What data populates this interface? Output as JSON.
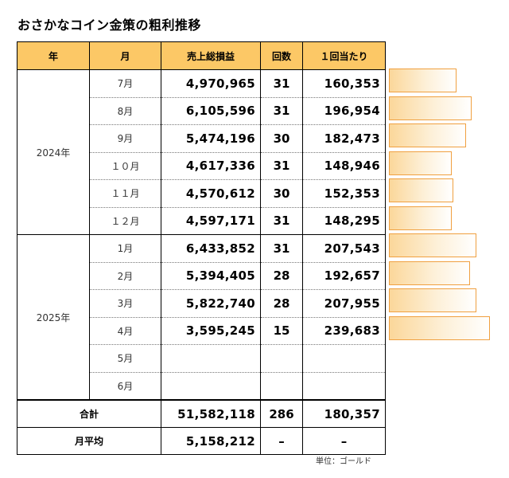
{
  "title": "おさかなコイン金策の粗利推移",
  "headers": [
    "年",
    "月",
    "売上総損益",
    "回数",
    "１回当たり"
  ],
  "groups": [
    {
      "year": "2024年",
      "rows": [
        {
          "month": "7月",
          "sales": "4,970,965",
          "count": "31",
          "per": "160,353",
          "per_value": 160353
        },
        {
          "month": "8月",
          "sales": "6,105,596",
          "count": "31",
          "per": "196,954",
          "per_value": 196954
        },
        {
          "month": "9月",
          "sales": "5,474,196",
          "count": "30",
          "per": "182,473",
          "per_value": 182473
        },
        {
          "month": "１０月",
          "sales": "4,617,336",
          "count": "31",
          "per": "148,946",
          "per_value": 148946
        },
        {
          "month": "１１月",
          "sales": "4,570,612",
          "count": "30",
          "per": "152,353",
          "per_value": 152353
        },
        {
          "month": "１２月",
          "sales": "4,597,171",
          "count": "31",
          "per": "148,295",
          "per_value": 148295
        }
      ]
    },
    {
      "year": "2025年",
      "rows": [
        {
          "month": "1月",
          "sales": "6,433,852",
          "count": "31",
          "per": "207,543",
          "per_value": 207543
        },
        {
          "month": "2月",
          "sales": "5,394,405",
          "count": "28",
          "per": "192,657",
          "per_value": 192657
        },
        {
          "month": "3月",
          "sales": "5,822,740",
          "count": "28",
          "per": "207,955",
          "per_value": 207955
        },
        {
          "month": "4月",
          "sales": "3,595,245",
          "count": "15",
          "per": "239,683",
          "per_value": 239683
        },
        {
          "month": "5月",
          "sales": "",
          "count": "",
          "per": "",
          "per_value": null
        },
        {
          "month": "6月",
          "sales": "",
          "count": "",
          "per": "",
          "per_value": null
        }
      ]
    }
  ],
  "total": {
    "label": "合計",
    "sales": "51,582,118",
    "count": "286",
    "per": "180,357"
  },
  "average": {
    "label": "月平均",
    "sales": "5,158,212",
    "count": "–",
    "per": "–"
  },
  "unit": "単位：ゴールド",
  "colors": {
    "header_bg": "#fcc866",
    "bar_border": "#f0a040"
  }
}
